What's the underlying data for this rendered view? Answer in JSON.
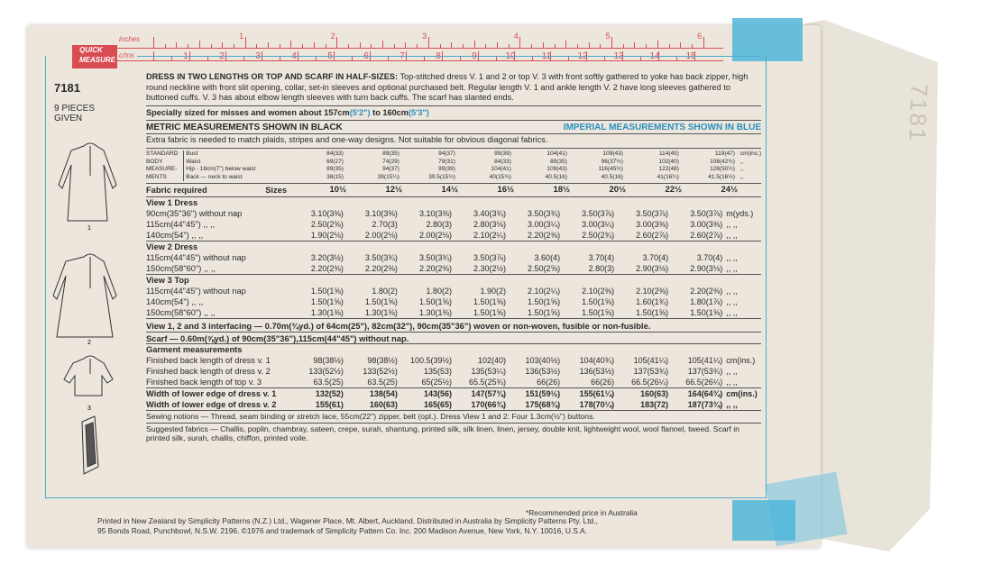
{
  "flap_code": "7181",
  "ruler": {
    "badge_top": "QUICK",
    "badge_bottom": "MEASURE",
    "unit_in": "inches",
    "unit_cm": "c/ms",
    "inch_labels": [
      "1",
      "2",
      "3",
      "4",
      "5",
      "6"
    ],
    "cm_labels": [
      "1",
      "2",
      "3",
      "4",
      "5",
      "6",
      "7",
      "8",
      "9",
      "10",
      "11",
      "12",
      "13",
      "14",
      "15"
    ]
  },
  "pattern_number": "7181",
  "pieces": "9 PIECES GIVEN",
  "views": [
    "1",
    "2",
    "3"
  ],
  "title": "DRESS IN TWO LENGTHS OR TOP AND SCARF IN HALF-SIZES:",
  "description": "Top-stitched dress V. 1 and 2 or top V. 3 with front softly gathered to yoke has back zipper, high round neckline with front slit opening, collar, set-in sleeves and optional purchased belt. Regular length V. 1 and ankle length V. 2 have long sleeves gathered to buttoned cuffs. V. 3 has about elbow length sleeves with turn back cuffs. The scarf has slanted ends.",
  "sized_for": "Specially sized for misses and women about 157cm",
  "sized_for_a": "(5'2\")",
  "sized_for_to": " to 160cm",
  "sized_for_b": "(5'3\")",
  "metric_note": "METRIC MEASUREMENTS SHOWN IN BLACK",
  "imperial_note": "IMPERIAL MEASUREMENTS SHOWN IN BLUE",
  "fabric_note": "Extra fabric is needed to match plaids, stripes and one-way designs. Not suitable for obvious diagonal fabrics.",
  "body": {
    "label": [
      "STANDARD",
      "BODY",
      "MEASURE-",
      "MENTS"
    ],
    "rows": [
      "Bust",
      "Waist",
      "Hip - 18cm(7\") below waist",
      "Back — neck to waist"
    ],
    "unit": "cm(ins.)",
    "values": [
      [
        "84(33)",
        "69(27)",
        "89(35)",
        "38(15)"
      ],
      [
        "89(35)",
        "74(29)",
        "94(37)",
        "39(15¼)"
      ],
      [
        "94(37)",
        "79(31)",
        "99(39)",
        "39.5(15½)"
      ],
      [
        "99(39)",
        "84(33)",
        "104(41)",
        "40(15¾)"
      ],
      [
        "104(41)",
        "89(35)",
        "109(43)",
        "40.5(16)"
      ],
      [
        "109(43)",
        "96(37½)",
        "116(45½)",
        "40.5(16)"
      ],
      [
        "114(45)",
        "102(40)",
        "122(48)",
        "41(16¼)"
      ],
      [
        "119(47)",
        "108(42½)",
        "128(50½)",
        "41.5(16½)"
      ]
    ]
  },
  "sizes_label": "Sizes",
  "sizes": [
    "10½",
    "12½",
    "14½",
    "16½",
    "18½",
    "20½",
    "22½",
    "24½"
  ],
  "fabric_required": "Fabric required",
  "view1": {
    "title": "View 1  Dress",
    "unit": "m(yds.)",
    "rows": [
      {
        "label": "90cm(35\"36\") without nap",
        "values": [
          "3.10(3⅜)",
          "3.10(3⅜)",
          "3.10(3⅜)",
          "3.40(3¾)",
          "3.50(3¾)",
          "3.50(3⅞)",
          "3.50(3⅞)",
          "3.50(3⅞)"
        ]
      },
      {
        "label": "115cm(44\"45\")   ,,   ,,",
        "values": [
          "2.50(2⅝)",
          "2.70(3)",
          "2.80(3)",
          "2.80(3⅛)",
          "3.00(3¼)",
          "3.00(3¼)",
          "3.00(3⅜)",
          "3.00(3⅜)"
        ]
      },
      {
        "label": "140cm(54\")   ,,   ,,",
        "values": [
          "1.90(2⅛)",
          "2.00(2⅛)",
          "2.00(2⅛)",
          "2.10(2¼)",
          "2.20(2⅜)",
          "2.50(2¾)",
          "2.60(2⅞)",
          "2.60(2⅞)"
        ]
      }
    ]
  },
  "view2": {
    "title": "View 2  Dress",
    "rows": [
      {
        "label": "115cm(44\"45\") without nap",
        "values": [
          "3.20(3½)",
          "3.50(3¾)",
          "3.50(3¾)",
          "3.50(3⅞)",
          "3.60(4)",
          "3.70(4)",
          "3.70(4)",
          "3.70(4)"
        ]
      },
      {
        "label": "150cm(58\"60\")   ,,   ,,",
        "values": [
          "2.20(2⅜)",
          "2.20(2⅜)",
          "2.20(2⅜)",
          "2.30(2½)",
          "2.50(2⅝)",
          "2.80(3)",
          "2.90(3⅛)",
          "2.90(3⅛)"
        ]
      }
    ]
  },
  "view3": {
    "title": "View 3  Top",
    "rows": [
      {
        "label": "115cm(44\"45\") without nap",
        "values": [
          "1.50(1⅝)",
          "1.80(2)",
          "1.80(2)",
          "1.90(2)",
          "2.10(2¼)",
          "2.10(2⅜)",
          "2.10(2⅜)",
          "2.20(2⅜)"
        ]
      },
      {
        "label": "140cm(54\")   ,,   ,,",
        "values": [
          "1.50(1⅝)",
          "1.50(1⅝)",
          "1.50(1⅝)",
          "1.50(1⅝)",
          "1.50(1⅝)",
          "1.50(1⅝)",
          "1.60(1¾)",
          "1.80(1⅞)"
        ]
      },
      {
        "label": "150cm(58\"60\")   ,,   ,,",
        "values": [
          "1.30(1⅜)",
          "1.30(1⅜)",
          "1.30(1⅜)",
          "1.50(1⅝)",
          "1.50(1⅝)",
          "1.50(1⅝)",
          "1.50(1⅝)",
          "1.50(1⅝)"
        ]
      }
    ]
  },
  "interfacing": "View 1, 2 and 3 interfacing — 0.70m(¾yd.) of 64cm(25\"), 82cm(32\"), 90cm(35\"36\") woven or non-woven, fusible or non-fusible.",
  "scarf": "Scarf — 0.60m(⅝yd.) of 90cm(35\"36\"),115cm(44\"45\") without nap.",
  "garment": {
    "title": "Garment measurements",
    "unit": "cm(ins.)",
    "rows": [
      {
        "label": "Finished back length of dress v. 1",
        "values": [
          "98(38½)",
          "98(38½)",
          "100.5(39½)",
          "102(40)",
          "103(40½)",
          "104(40¾)",
          "105(41¼)",
          "105(41¼)"
        ]
      },
      {
        "label": "Finished back length of dress v. 2",
        "values": [
          "133(52½)",
          "133(52½)",
          "135(53)",
          "135(53¼)",
          "136(53½)",
          "136(53½)",
          "137(53¾)",
          "137(53¾)"
        ]
      },
      {
        "label": "Finished back length of top v. 3",
        "values": [
          "63.5(25)",
          "63.5(25)",
          "65(25½)",
          "65.5(25¾)",
          "66(26)",
          "66(26)",
          "66.5(26¼)",
          "66.5(26¼)"
        ]
      }
    ]
  },
  "width": {
    "rows": [
      {
        "label": "Width of lower edge of dress v. 1",
        "values": [
          "132(52)",
          "138(54)",
          "143(56)",
          "147(57¾)",
          "151(59½)",
          "155(61¼)",
          "160(63)",
          "164(64¾)"
        ]
      },
      {
        "label": "Width of lower edge of dress v. 2",
        "values": [
          "155(61)",
          "160(63)",
          "165(65)",
          "170(66¾)",
          "175(68¾)",
          "178(70¼)",
          "183(72)",
          "187(73¾)"
        ]
      }
    ]
  },
  "notions": "Sewing notions — Thread, seam binding or stretch lace, 55cm(22\") zipper, belt (opt.). Dress View 1 and 2: Four 1.3cm(½\") buttons.",
  "suggested": "Suggested fabrics — Challis, poplin, chambray, sateen, crepe, surah, shantung, printed silk, silk linen, linen, jersey, double knit, lightweight wool, wool flannel, tweed. Scarf in printed silk, surah, challis, chiffon, printed voile.",
  "footnote": "*Recommended price in Australia",
  "footer_1": "Printed in New Zealand by Simplicity Patterns (N.Z.) Ltd., Wagener Place, Mt. Albert, Auckland. Distributed in Australia by Simplicity Patterns Pty. Ltd.,",
  "footer_2": "95 Bonds Road, Punchbowl, N.S.W. 2196.      ©1976 and trademark of Simplicity Pattern Co. Inc. 200 Madison Avenue, New York, N.Y. 10016, U.S.A."
}
